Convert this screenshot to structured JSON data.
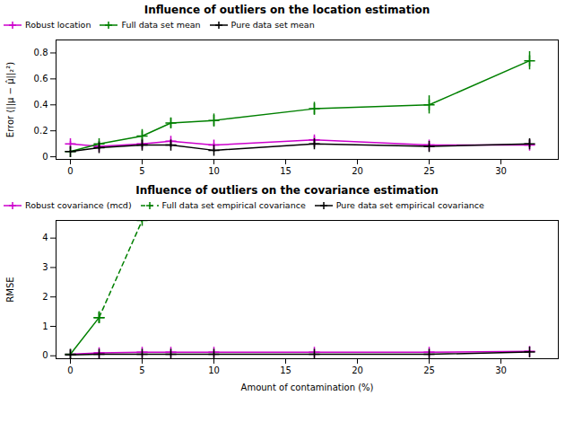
{
  "chart_data": [
    {
      "type": "line",
      "title": "Influence of outliers on the location estimation",
      "ylabel": "Error (||μ − μ̂||₂²)",
      "x": [
        0,
        2,
        5,
        7,
        10,
        17,
        25,
        32
      ],
      "xlim": [
        -1,
        34
      ],
      "xticks": [
        0,
        5,
        10,
        15,
        20,
        25,
        30
      ],
      "ylim": [
        -0.02,
        0.9
      ],
      "yticks": [
        0,
        0.2,
        0.4,
        0.6,
        0.8
      ],
      "grid": false,
      "legend": "upper left",
      "series": [
        {
          "name": "Robust location",
          "color": "#cc00cc",
          "marker": "+",
          "line_style": "solid",
          "values": [
            0.1,
            0.08,
            0.1,
            0.12,
            0.09,
            0.13,
            0.09,
            0.09
          ],
          "errors": [
            0.02,
            0.01,
            0.015,
            0.015,
            0.015,
            0.025,
            0.015,
            0.01
          ]
        },
        {
          "name": "Full data set mean",
          "color": "#008000",
          "marker": "+",
          "line_style": "solid",
          "values": [
            0.04,
            0.1,
            0.16,
            0.26,
            0.28,
            0.37,
            0.4,
            0.74
          ],
          "errors": [
            0.01,
            0.02,
            0.05,
            0.04,
            0.05,
            0.05,
            0.07,
            0.07
          ]
        },
        {
          "name": "Pure data set mean",
          "color": "#000000",
          "marker": "+",
          "line_style": "solid",
          "values": [
            0.04,
            0.07,
            0.09,
            0.09,
            0.05,
            0.1,
            0.08,
            0.1
          ],
          "errors": [
            0.005,
            0.015,
            0.02,
            0.02,
            0.015,
            0.03,
            0.01,
            0.03
          ]
        }
      ]
    },
    {
      "type": "line",
      "title": "Influence of outliers on the covariance estimation",
      "xlabel": "Amount of contamination (%)",
      "ylabel": "RMSE",
      "x": [
        0,
        2,
        5,
        7,
        10,
        17,
        25,
        32
      ],
      "xlim": [
        -1,
        34
      ],
      "xticks": [
        0,
        5,
        10,
        15,
        20,
        25,
        30
      ],
      "ylim": [
        -0.1,
        4.6
      ],
      "yticks": [
        0,
        1,
        2,
        3,
        4
      ],
      "grid": false,
      "legend": "upper left",
      "series": [
        {
          "name": "Robust covariance (mcd)",
          "color": "#cc00cc",
          "marker": "+",
          "line_style": "solid",
          "values": [
            0.05,
            0.1,
            0.12,
            0.12,
            0.12,
            0.12,
            0.12,
            0.15
          ],
          "errors": [
            0.01,
            0.02,
            0.01,
            0.01,
            0.01,
            0.01,
            0.01,
            0.01
          ]
        },
        {
          "color": "#008000",
          "marker": "+",
          "line_style": "solid",
          "values": [
            0.05,
            1.3,
            null,
            null,
            null,
            null,
            null,
            null
          ],
          "errors": [
            0.01,
            0.2,
            null,
            null,
            null,
            null,
            null,
            null
          ]
        },
        {
          "name": "Full data set empirical covariance",
          "color": "#008000",
          "marker": "+",
          "line_style": "dashed",
          "values": [
            null,
            1.3,
            4.6,
            null,
            null,
            null,
            null,
            null
          ]
        },
        {
          "name": "Pure data set empirical covariance",
          "color": "#000000",
          "marker": "+",
          "line_style": "solid",
          "values": [
            0.03,
            0.05,
            0.05,
            0.05,
            0.05,
            0.05,
            0.05,
            0.13
          ],
          "errors": [
            0.005,
            0.01,
            0.01,
            0.01,
            0.01,
            0.01,
            0.01,
            0.02
          ]
        }
      ]
    }
  ]
}
